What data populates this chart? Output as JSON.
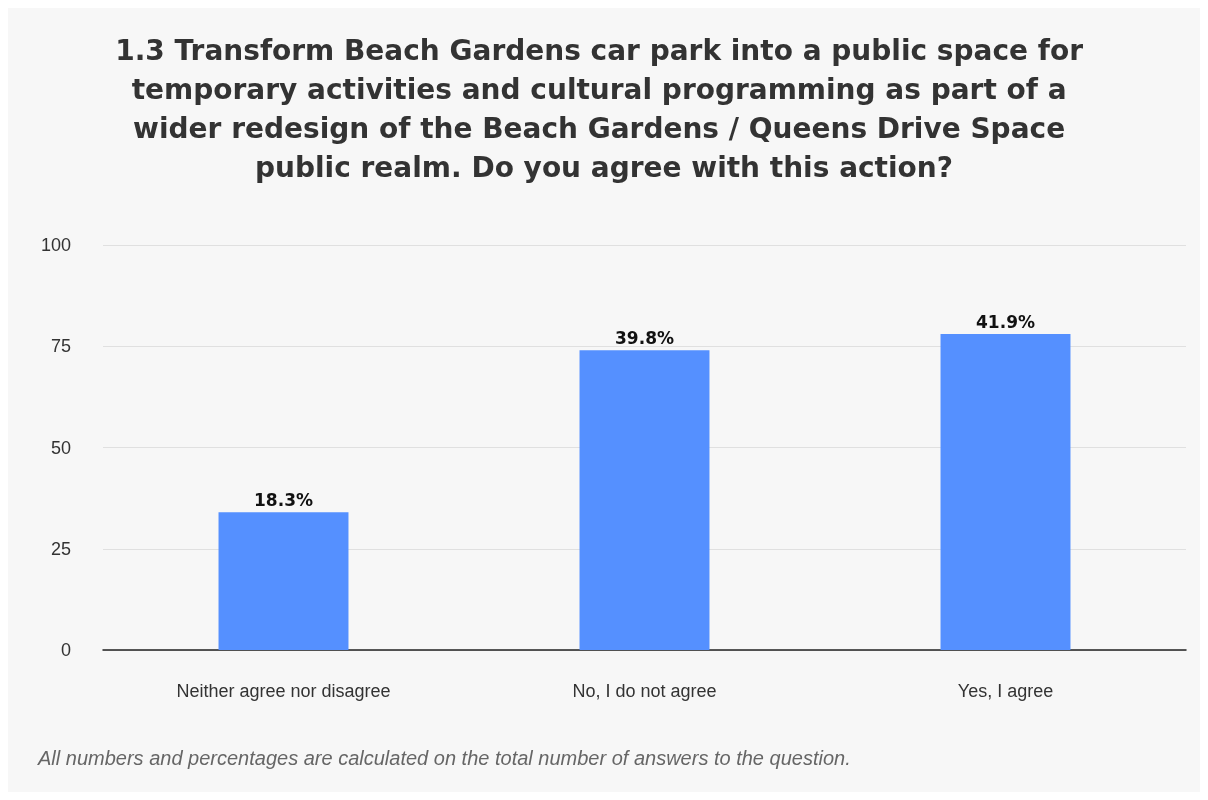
{
  "chart_data": {
    "type": "bar",
    "title": "1.3 Transform Beach Gardens car park into a public space for temporary activities and cultural programming as part of a wider redesign of the Beach Gardens / Queens Drive Space public realm. Do you agree with this action?",
    "categories": [
      "Neither agree nor disagree",
      "No, I do not agree",
      "Yes, I agree"
    ],
    "values": [
      34,
      74,
      78
    ],
    "color": "#5590ff",
    "ylim": [
      0,
      100
    ],
    "yticks": [
      0,
      25,
      50,
      75,
      100
    ],
    "grid": "y",
    "annotations": [
      {
        "text": "18.3%",
        "x": "Neither agree nor disagree",
        "y": 34
      },
      {
        "text": "39.8%",
        "x": "No, I do not agree",
        "y": 74
      },
      {
        "text": "41.9%",
        "x": "Yes, I agree",
        "y": 78
      },
      "All numbers and percentages are calculated on the total number of answers to the question."
    ]
  }
}
